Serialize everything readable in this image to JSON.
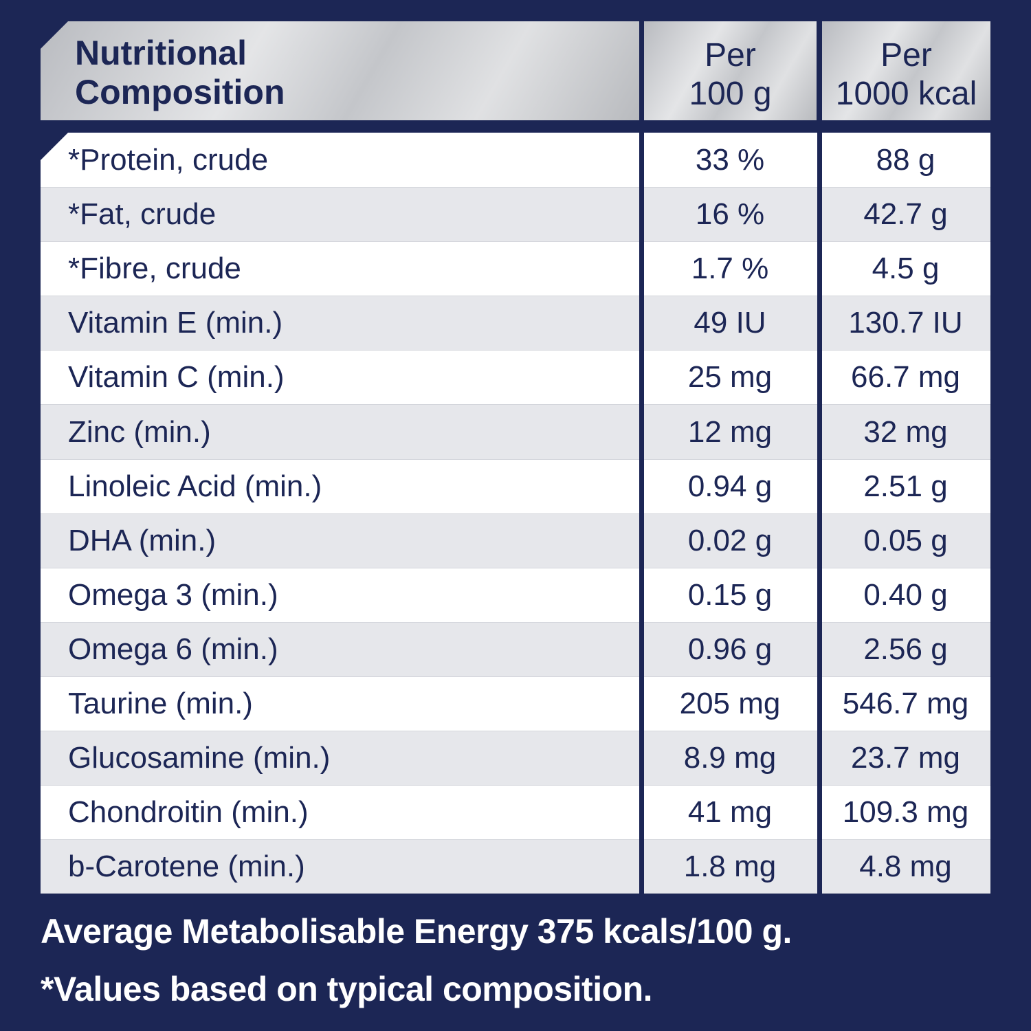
{
  "header": {
    "title_line1": "Nutritional",
    "title_line2": "Composition",
    "col1_line1": "Per",
    "col1_line2": "100 g",
    "col2_line1": "Per",
    "col2_line2": "1000 kcal"
  },
  "rows": [
    {
      "name": "*Protein, crude",
      "per100g": "33 %",
      "per1000kcal": "88 g"
    },
    {
      "name": "*Fat, crude",
      "per100g": "16 %",
      "per1000kcal": "42.7 g"
    },
    {
      "name": "*Fibre, crude",
      "per100g": "1.7 %",
      "per1000kcal": "4.5 g"
    },
    {
      "name": "Vitamin E (min.)",
      "per100g": "49 IU",
      "per1000kcal": "130.7 IU"
    },
    {
      "name": "Vitamin C (min.)",
      "per100g": "25 mg",
      "per1000kcal": "66.7 mg"
    },
    {
      "name": "Zinc (min.)",
      "per100g": "12 mg",
      "per1000kcal": "32 mg"
    },
    {
      "name": "Linoleic Acid (min.)",
      "per100g": "0.94 g",
      "per1000kcal": "2.51 g"
    },
    {
      "name": "DHA (min.)",
      "per100g": "0.02 g",
      "per1000kcal": "0.05 g"
    },
    {
      "name": "Omega 3 (min.)",
      "per100g": "0.15 g",
      "per1000kcal": "0.40 g"
    },
    {
      "name": "Omega 6 (min.)",
      "per100g": "0.96 g",
      "per1000kcal": "2.56 g"
    },
    {
      "name": "Taurine (min.)",
      "per100g": "205 mg",
      "per1000kcal": "546.7 mg"
    },
    {
      "name": "Glucosamine (min.)",
      "per100g": "8.9 mg",
      "per1000kcal": "23.7 mg"
    },
    {
      "name": "Chondroitin (min.)",
      "per100g": "41 mg",
      "per1000kcal": "109.3 mg"
    },
    {
      "name": "b-Carotene (min.)",
      "per100g": "1.8 mg",
      "per1000kcal": "4.8 mg"
    }
  ],
  "footer": {
    "energy": "Average Metabolisable Energy 375 kcals/100 g.",
    "note": "*Values based on typical composition."
  }
}
